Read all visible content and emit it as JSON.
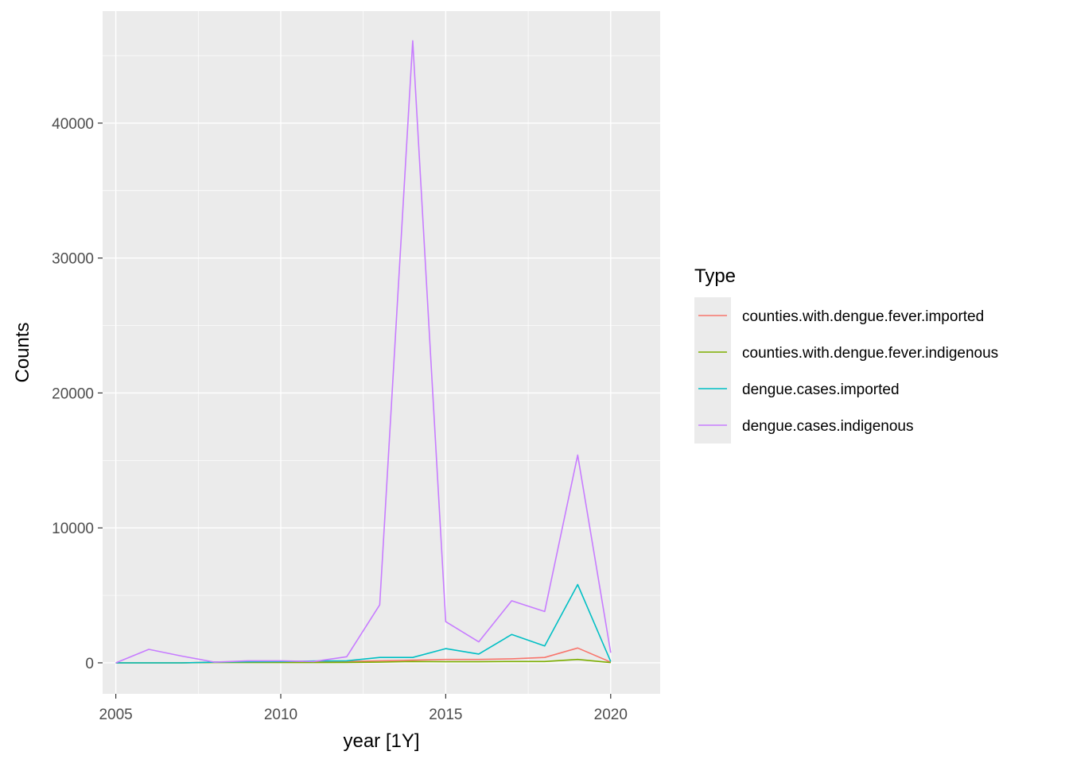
{
  "chart_data": {
    "type": "line",
    "xlabel": "year [1Y]",
    "ylabel": "Counts",
    "x": [
      2005,
      2006,
      2007,
      2008,
      2009,
      2010,
      2011,
      2012,
      2013,
      2014,
      2015,
      2016,
      2017,
      2018,
      2019,
      2020
    ],
    "xlim": [
      2004.6,
      2021.5
    ],
    "ylim": [
      -2300,
      48300
    ],
    "x_ticks": [
      2005,
      2010,
      2015,
      2020
    ],
    "x_tick_labels": [
      "2005",
      "2010",
      "2015",
      "2020"
    ],
    "y_ticks": [
      0,
      10000,
      20000,
      30000,
      40000
    ],
    "y_tick_labels": [
      "0",
      "10000",
      "20000",
      "30000",
      "40000"
    ],
    "grid": true,
    "legend": {
      "title": "Type",
      "position": "right"
    },
    "series": [
      {
        "name": "counties.with.dengue.fever.imported",
        "color": "#F8766D",
        "values": [
          0,
          0,
          0,
          50,
          50,
          80,
          80,
          100,
          150,
          200,
          250,
          250,
          300,
          400,
          1100,
          50
        ]
      },
      {
        "name": "counties.with.dengue.fever.indigenous",
        "color": "#7CAE00",
        "values": [
          0,
          0,
          0,
          20,
          20,
          20,
          20,
          30,
          50,
          100,
          80,
          80,
          100,
          100,
          250,
          20
        ]
      },
      {
        "name": "dengue.cases.imported",
        "color": "#00BFC4",
        "values": [
          0,
          0,
          0,
          50,
          80,
          100,
          130,
          150,
          400,
          400,
          1050,
          650,
          2100,
          1250,
          5800,
          100
        ]
      },
      {
        "name": "dengue.cases.indigenous",
        "color": "#C77CFF",
        "values": [
          0,
          1000,
          500,
          50,
          150,
          150,
          100,
          450,
          4300,
          46100,
          3050,
          1550,
          4600,
          3800,
          15400,
          750
        ]
      }
    ]
  }
}
